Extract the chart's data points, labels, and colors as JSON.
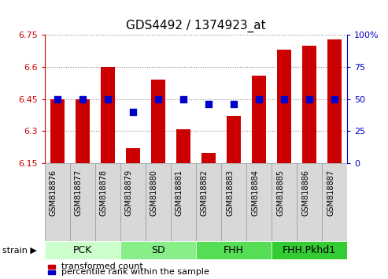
{
  "title": "GDS4492 / 1374923_at",
  "samples": [
    "GSM818876",
    "GSM818877",
    "GSM818878",
    "GSM818879",
    "GSM818880",
    "GSM818881",
    "GSM818882",
    "GSM818883",
    "GSM818884",
    "GSM818885",
    "GSM818886",
    "GSM818887"
  ],
  "bar_values": [
    6.45,
    6.45,
    6.6,
    6.22,
    6.54,
    6.31,
    6.2,
    6.37,
    6.56,
    6.68,
    6.7,
    6.73
  ],
  "percentile_values": [
    50,
    50,
    50,
    40,
    50,
    50,
    46,
    46,
    50,
    50,
    50,
    50
  ],
  "bar_bottom": 6.15,
  "ylim_left": [
    6.15,
    6.75
  ],
  "ylim_right": [
    0,
    100
  ],
  "yticks_left": [
    6.15,
    6.3,
    6.45,
    6.6,
    6.75
  ],
  "ytick_labels_left": [
    "6.15",
    "6.3",
    "6.45",
    "6.6",
    "6.75"
  ],
  "yticks_right": [
    0,
    25,
    50,
    75,
    100
  ],
  "ytick_labels_right": [
    "0",
    "25",
    "50",
    "75",
    "100%"
  ],
  "bar_color": "#cc0000",
  "dot_color": "#0000cc",
  "groups": [
    {
      "label": "PCK",
      "start": 0,
      "end": 3,
      "color": "#ccffcc"
    },
    {
      "label": "SD",
      "start": 3,
      "end": 6,
      "color": "#88ee88"
    },
    {
      "label": "FHH",
      "start": 6,
      "end": 9,
      "color": "#55dd55"
    },
    {
      "label": "FHH.Pkhd1",
      "start": 9,
      "end": 12,
      "color": "#33cc33"
    }
  ],
  "strain_label": "strain",
  "legend_bar_label": "transformed count",
  "legend_dot_label": "percentile rank within the sample",
  "grid_color": "#888888",
  "axis_color_left": "#cc0000",
  "axis_color_right": "#0000cc",
  "tick_label_color_left": "#cc0000",
  "tick_label_color_right": "#0000cc",
  "bar_width": 0.55,
  "dot_size": 30,
  "group_label_fontsize": 9,
  "sample_fontsize": 7,
  "title_fontsize": 11
}
